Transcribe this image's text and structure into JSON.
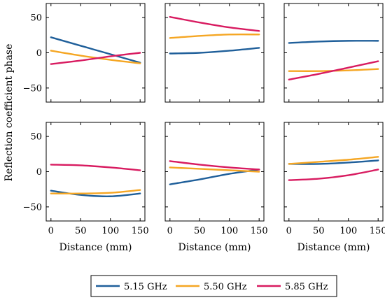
{
  "chart_data": {
    "type": "line",
    "ylabel": "Reflection coefficient phase",
    "xlabel": "Distance (mm)",
    "xlim": [
      -8,
      158
    ],
    "ylim": [
      -70,
      70
    ],
    "xticks": [
      0,
      50,
      100,
      150
    ],
    "yticks": [
      -50,
      0,
      50
    ],
    "legend": {
      "placement": "bottom",
      "entries": [
        {
          "name": "5.15 GHz",
          "color": "#1f5f9a"
        },
        {
          "name": "5.50 GHz",
          "color": "#f5a623"
        },
        {
          "name": "5.85 GHz",
          "color": "#d81b60"
        }
      ]
    },
    "panels": [
      {
        "series": [
          {
            "name": "5.15 GHz",
            "x": [
              0,
              50,
              100,
              150
            ],
            "y": [
              22,
              10,
              -2,
              -14
            ]
          },
          {
            "name": "5.50 GHz",
            "x": [
              0,
              50,
              100,
              150
            ],
            "y": [
              3,
              -4,
              -10,
              -15
            ]
          },
          {
            "name": "5.85 GHz",
            "x": [
              0,
              50,
              100,
              150
            ],
            "y": [
              -16,
              -11,
              -5,
              0
            ]
          }
        ]
      },
      {
        "series": [
          {
            "name": "5.15 GHz",
            "x": [
              0,
              50,
              100,
              150
            ],
            "y": [
              -1,
              0,
              3,
              7
            ]
          },
          {
            "name": "5.50 GHz",
            "x": [
              0,
              50,
              100,
              150
            ],
            "y": [
              21,
              24,
              26,
              26
            ]
          },
          {
            "name": "5.85 GHz",
            "x": [
              0,
              50,
              100,
              150
            ],
            "y": [
              51,
              43,
              36,
              31
            ]
          }
        ]
      },
      {
        "series": [
          {
            "name": "5.15 GHz",
            "x": [
              0,
              50,
              100,
              150
            ],
            "y": [
              14,
              16,
              17,
              17
            ]
          },
          {
            "name": "5.50 GHz",
            "x": [
              0,
              50,
              100,
              150
            ],
            "y": [
              -26,
              -26,
              -25,
              -23
            ]
          },
          {
            "name": "5.85 GHz",
            "x": [
              0,
              50,
              100,
              150
            ],
            "y": [
              -38,
              -30,
              -21,
              -12
            ]
          }
        ]
      },
      {
        "series": [
          {
            "name": "5.15 GHz",
            "x": [
              0,
              50,
              100,
              150
            ],
            "y": [
              -27,
              -33,
              -35,
              -31
            ]
          },
          {
            "name": "5.50 GHz",
            "x": [
              0,
              50,
              100,
              150
            ],
            "y": [
              -31,
              -31,
              -30,
              -26
            ]
          },
          {
            "name": "5.85 GHz",
            "x": [
              0,
              50,
              100,
              150
            ],
            "y": [
              10,
              9,
              6,
              2
            ]
          }
        ]
      },
      {
        "series": [
          {
            "name": "5.15 GHz",
            "x": [
              0,
              50,
              100,
              150
            ],
            "y": [
              -18,
              -11,
              -3,
              3
            ]
          },
          {
            "name": "5.50 GHz",
            "x": [
              0,
              50,
              100,
              150
            ],
            "y": [
              6,
              4,
              2,
              0
            ]
          },
          {
            "name": "5.85 GHz",
            "x": [
              0,
              50,
              100,
              150
            ],
            "y": [
              15,
              10,
              6,
              3
            ]
          }
        ]
      },
      {
        "series": [
          {
            "name": "5.15 GHz",
            "x": [
              0,
              50,
              100,
              150
            ],
            "y": [
              11,
              11,
              13,
              16
            ]
          },
          {
            "name": "5.50 GHz",
            "x": [
              0,
              50,
              100,
              150
            ],
            "y": [
              11,
              14,
              17,
              21
            ]
          },
          {
            "name": "5.85 GHz",
            "x": [
              0,
              50,
              100,
              150
            ],
            "y": [
              -12,
              -10,
              -5,
              3
            ]
          }
        ]
      }
    ]
  }
}
